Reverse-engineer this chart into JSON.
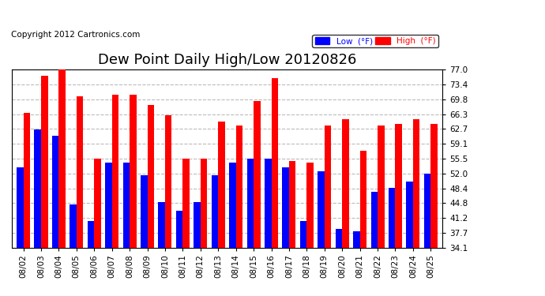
{
  "title": "Dew Point Daily High/Low 20120826",
  "copyright": "Copyright 2012 Cartronics.com",
  "dates": [
    "08/02",
    "08/03",
    "08/04",
    "08/05",
    "08/06",
    "08/07",
    "08/08",
    "08/09",
    "08/10",
    "08/11",
    "08/12",
    "08/13",
    "08/14",
    "08/15",
    "08/16",
    "08/17",
    "08/18",
    "08/19",
    "08/20",
    "08/21",
    "08/22",
    "08/23",
    "08/24",
    "08/25"
  ],
  "low_values": [
    53.5,
    62.5,
    61.0,
    44.5,
    40.5,
    54.5,
    54.5,
    51.5,
    45.0,
    43.0,
    45.0,
    51.5,
    54.5,
    55.5,
    55.5,
    53.5,
    40.5,
    52.5,
    38.5,
    38.0,
    47.5,
    48.5,
    50.0,
    52.0
  ],
  "high_values": [
    66.5,
    75.5,
    77.0,
    70.5,
    55.5,
    71.0,
    71.0,
    68.5,
    66.0,
    55.5,
    55.5,
    64.5,
    63.5,
    69.5,
    75.0,
    55.0,
    54.5,
    63.5,
    65.0,
    57.5,
    63.5,
    64.0,
    65.0,
    64.0
  ],
  "low_color": "#0000ff",
  "high_color": "#ff0000",
  "background_color": "#ffffff",
  "plot_bg_color": "#ffffff",
  "grid_color": "#aaaaaa",
  "ylim_min": 34.1,
  "ylim_max": 77.0,
  "yticks": [
    34.1,
    37.7,
    41.2,
    44.8,
    48.4,
    52.0,
    55.5,
    59.1,
    62.7,
    66.3,
    69.8,
    73.4,
    77.0
  ],
  "title_fontsize": 13,
  "copyright_fontsize": 7.5,
  "bar_width": 0.38,
  "legend_low_label": "Low  (°F)",
  "legend_high_label": "High  (°F)"
}
